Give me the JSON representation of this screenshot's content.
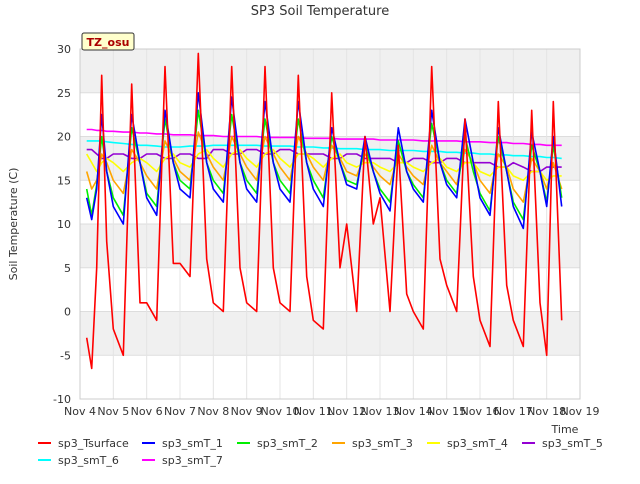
{
  "chart_data": {
    "type": "line",
    "title": "SP3 Soil Temperature",
    "xlabel": "Time",
    "ylabel": "Soil Temperature (C)",
    "ylim": [
      -10,
      30
    ],
    "xlim": [
      4,
      19
    ],
    "yticks": [
      -10,
      -5,
      0,
      5,
      10,
      15,
      20,
      25,
      30
    ],
    "xticks": [
      {
        "value": 4,
        "label": "Nov 4"
      },
      {
        "value": 5,
        "label": "Nov 5"
      },
      {
        "value": 6,
        "label": "Nov 6"
      },
      {
        "value": 7,
        "label": "Nov 7"
      },
      {
        "value": 8,
        "label": "Nov 8"
      },
      {
        "value": 9,
        "label": "Nov 9"
      },
      {
        "value": 10,
        "label": "Nov 10"
      },
      {
        "value": 11,
        "label": "Nov 11"
      },
      {
        "value": 12,
        "label": "Nov 12"
      },
      {
        "value": 13,
        "label": "Nov 13"
      },
      {
        "value": 14,
        "label": "Nov 14"
      },
      {
        "value": 15,
        "label": "Nov 15"
      },
      {
        "value": 16,
        "label": "Nov 16"
      },
      {
        "value": 17,
        "label": "Nov 17"
      },
      {
        "value": 18,
        "label": "Nov 18"
      },
      {
        "value": 19,
        "label": "Nov 19"
      }
    ],
    "annotation": "TZ_osu",
    "x_days": [
      4.2,
      4.35,
      4.5,
      4.65,
      4.8,
      5.0,
      5.3,
      5.55,
      5.8,
      6.0,
      6.3,
      6.55,
      6.8,
      7.0,
      7.3,
      7.55,
      7.8,
      8.0,
      8.3,
      8.55,
      8.8,
      9.0,
      9.3,
      9.55,
      9.8,
      10.0,
      10.3,
      10.55,
      10.8,
      11.0,
      11.3,
      11.55,
      11.8,
      12.0,
      12.3,
      12.55,
      12.8,
      13.0,
      13.3,
      13.55,
      13.8,
      14.0,
      14.3,
      14.55,
      14.8,
      15.0,
      15.3,
      15.55,
      15.8,
      16.0,
      16.3,
      16.55,
      16.8,
      17.0,
      17.3,
      17.55,
      17.8,
      18.0,
      18.2,
      18.45
    ],
    "series": [
      {
        "name": "sp3_Tsurface",
        "color": "#ff0000",
        "values": [
          -3,
          -6.5,
          5,
          27,
          8,
          -2,
          -5,
          26,
          1,
          1,
          -1,
          28,
          5.5,
          5.5,
          4,
          29.5,
          6,
          1,
          0,
          28,
          5,
          1,
          0,
          28,
          5,
          1,
          0,
          27,
          4,
          -1,
          -2,
          25,
          5,
          10,
          0,
          20,
          10,
          13,
          0,
          19,
          2,
          0,
          -2,
          28,
          6,
          3,
          0,
          22,
          4,
          -1,
          -4,
          24,
          3,
          -1,
          -4,
          23,
          1,
          -5,
          24,
          -1
        ]
      },
      {
        "name": "sp3_smT_1",
        "color": "#0000ff",
        "values": [
          13,
          10.5,
          14,
          22.5,
          16,
          12,
          10,
          22.5,
          17,
          13,
          11,
          23,
          17,
          14,
          13,
          25,
          17,
          14,
          12.5,
          24.5,
          17,
          14,
          12.5,
          24,
          17,
          14,
          12.5,
          24,
          17,
          14,
          12,
          21,
          17,
          14.5,
          14,
          20,
          16,
          13.5,
          11.5,
          21,
          16,
          14,
          12.5,
          23,
          17,
          14.5,
          13,
          22,
          17,
          13,
          11,
          21,
          16,
          12,
          9.5,
          20.5,
          16,
          12,
          20,
          12
        ]
      },
      {
        "name": "sp3_smT_2",
        "color": "#00ee00",
        "values": [
          14,
          11,
          14.5,
          20,
          16,
          13,
          11,
          21,
          17,
          13.5,
          12,
          22,
          17,
          15,
          14,
          23,
          17,
          15,
          13.5,
          22.5,
          17,
          15,
          13.5,
          22,
          17,
          15,
          13.5,
          22,
          17,
          15,
          13,
          20,
          17,
          15,
          14.5,
          19,
          16,
          14,
          12.5,
          19.5,
          16,
          14.5,
          13,
          21.5,
          17,
          15,
          13.5,
          20,
          16,
          13.5,
          11.5,
          20,
          16,
          12.5,
          10.5,
          19,
          16,
          12.5,
          19,
          13
        ]
      },
      {
        "name": "sp3_smT_3",
        "color": "#ffa500",
        "values": [
          16,
          14,
          15,
          18,
          17,
          15,
          13.5,
          18.5,
          17,
          15.5,
          14,
          19.5,
          17.5,
          16,
          15,
          20.5,
          18,
          16.5,
          15,
          20,
          18,
          16.5,
          15,
          20,
          18,
          16.5,
          15,
          20,
          18,
          16.5,
          15,
          19,
          17.5,
          16,
          15.5,
          18,
          16.5,
          15.5,
          14.5,
          18,
          16.5,
          15.5,
          14.5,
          19,
          17,
          16,
          14.5,
          18.5,
          17,
          15,
          13.5,
          18,
          16.5,
          14,
          12.5,
          17.5,
          16,
          14,
          17,
          14
        ]
      },
      {
        "name": "sp3_smT_4",
        "color": "#ffff00",
        "values": [
          18,
          17,
          16,
          17,
          17.5,
          17,
          16,
          17,
          17.5,
          17,
          16,
          17.5,
          18,
          17,
          16.5,
          18,
          18.5,
          17.5,
          16.5,
          18,
          18.5,
          17.5,
          16.5,
          18,
          18.5,
          17.5,
          16.5,
          18,
          18,
          17.5,
          16.5,
          17.5,
          18,
          17,
          16.5,
          17,
          17,
          16.5,
          16,
          17,
          17,
          16.5,
          16,
          17,
          17.5,
          16.5,
          16,
          17,
          17,
          16,
          15.5,
          16.5,
          16.5,
          15.5,
          15,
          16,
          16,
          15,
          15.5,
          15.5
        ]
      },
      {
        "name": "sp3_smT_5",
        "color": "#9400d3",
        "values": [
          18.5,
          18.5,
          18,
          17.5,
          17.5,
          18,
          18,
          17.5,
          17.5,
          18,
          18,
          17.5,
          17.5,
          18,
          18,
          17.5,
          17.5,
          18.5,
          18.5,
          18,
          18,
          18.5,
          18.5,
          18,
          18,
          18.5,
          18.5,
          18,
          18,
          18,
          18,
          17.5,
          17.5,
          18,
          18,
          17.5,
          17.5,
          17.5,
          17.5,
          17,
          17,
          17.5,
          17.5,
          17,
          17,
          17.5,
          17.5,
          17,
          17,
          17,
          17,
          16.5,
          16.5,
          17,
          16.5,
          16,
          16,
          16.5,
          16.5,
          16.5
        ]
      },
      {
        "name": "sp3_smT_6",
        "color": "#00ffff",
        "values": [
          19.5,
          19.5,
          19.5,
          19.5,
          19.4,
          19.3,
          19.2,
          19.1,
          19,
          19,
          18.9,
          18.8,
          18.8,
          18.8,
          18.9,
          18.9,
          18.9,
          19,
          19,
          19,
          19,
          19,
          19,
          18.9,
          18.9,
          18.9,
          18.9,
          18.8,
          18.8,
          18.8,
          18.7,
          18.7,
          18.6,
          18.6,
          18.6,
          18.5,
          18.5,
          18.5,
          18.4,
          18.4,
          18.4,
          18.4,
          18.3,
          18.3,
          18.3,
          18.2,
          18.2,
          18.1,
          18.1,
          18,
          18,
          17.9,
          17.9,
          17.8,
          17.8,
          17.7,
          17.7,
          17.6,
          17.6,
          17.5
        ]
      },
      {
        "name": "sp3_smT_7",
        "color": "#ff00ff",
        "values": [
          20.8,
          20.8,
          20.7,
          20.7,
          20.6,
          20.6,
          20.5,
          20.5,
          20.4,
          20.4,
          20.3,
          20.3,
          20.2,
          20.2,
          20.2,
          20.1,
          20.1,
          20.1,
          20,
          20,
          20,
          20,
          20,
          19.9,
          19.9,
          19.9,
          19.9,
          19.9,
          19.8,
          19.8,
          19.8,
          19.8,
          19.7,
          19.7,
          19.7,
          19.7,
          19.7,
          19.6,
          19.6,
          19.6,
          19.6,
          19.6,
          19.5,
          19.5,
          19.5,
          19.5,
          19.5,
          19.4,
          19.4,
          19.4,
          19.3,
          19.3,
          19.3,
          19.2,
          19.2,
          19.1,
          19.1,
          19,
          19,
          19
        ]
      }
    ]
  }
}
